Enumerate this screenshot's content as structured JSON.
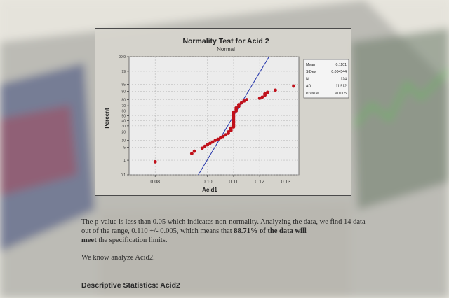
{
  "colors": {
    "background": "#e9e7df",
    "panel": "#d7d5cd",
    "points": "#c0101a",
    "fit_line": "#2233aa",
    "text": "#2a2a2a"
  },
  "chart_data": {
    "type": "scatter",
    "title": "Normality Test for Acid 2",
    "subtitle": "Normal",
    "xlabel": "Acid1",
    "ylabel": "Percent",
    "x_ticks": [
      "0.08",
      "0.10",
      "0.11",
      "0.12",
      "0.13"
    ],
    "y_ticks": [
      "0.1",
      "1",
      "5",
      "10",
      "20",
      "30",
      "40",
      "50",
      "60",
      "70",
      "80",
      "90",
      "95",
      "99",
      "99.9"
    ],
    "xlim": [
      0.07,
      0.135
    ],
    "ylim": [
      0.1,
      99.9
    ],
    "y_scale": "normal-probability",
    "grid": true,
    "fit_line": {
      "x1": 0.0965,
      "y1": 0.1,
      "x2": 0.1236,
      "y2": 99.9
    },
    "series": [
      {
        "points": [
          [
            0.08,
            0.8
          ],
          [
            0.094,
            2.4
          ],
          [
            0.095,
            3.2
          ],
          [
            0.098,
            4.5
          ],
          [
            0.099,
            5.5
          ],
          [
            0.1,
            6.5
          ],
          [
            0.101,
            7.5
          ],
          [
            0.102,
            8.5
          ],
          [
            0.103,
            10
          ],
          [
            0.104,
            11
          ],
          [
            0.105,
            12.5
          ],
          [
            0.106,
            14
          ],
          [
            0.107,
            16
          ],
          [
            0.108,
            18
          ],
          [
            0.108,
            20
          ],
          [
            0.109,
            22
          ],
          [
            0.109,
            24
          ],
          [
            0.109,
            26
          ],
          [
            0.11,
            28
          ],
          [
            0.11,
            30
          ],
          [
            0.11,
            33
          ],
          [
            0.11,
            36
          ],
          [
            0.11,
            39
          ],
          [
            0.11,
            42
          ],
          [
            0.11,
            45
          ],
          [
            0.11,
            48
          ],
          [
            0.11,
            51
          ],
          [
            0.11,
            54
          ],
          [
            0.11,
            57
          ],
          [
            0.111,
            60
          ],
          [
            0.111,
            63
          ],
          [
            0.111,
            66
          ],
          [
            0.112,
            69
          ],
          [
            0.112,
            72
          ],
          [
            0.113,
            75
          ],
          [
            0.114,
            78
          ],
          [
            0.115,
            80
          ],
          [
            0.12,
            82
          ],
          [
            0.121,
            83.5
          ],
          [
            0.122,
            86
          ],
          [
            0.122,
            87.5
          ],
          [
            0.123,
            89
          ],
          [
            0.126,
            91
          ],
          [
            0.133,
            94
          ]
        ]
      }
    ],
    "legend": {
      "placement": "right",
      "rows": [
        {
          "label": "Mean",
          "value": "0.1101"
        },
        {
          "label": "StDev",
          "value": "0.004544"
        },
        {
          "label": "N",
          "value": "124"
        },
        {
          "label": "AD",
          "value": "11.512"
        },
        {
          "label": "P-Value",
          "value": "<0.005"
        }
      ]
    }
  },
  "document": {
    "para1_part1": "The p-value is less than 0.05 which indicates non-normality.  Analyzing the data, we find 14 data out of the range, 0.110 +/- 0.005, which means that ",
    "para1_bold": "88.71% of the data will",
    "para1_bold2": "meet",
    "para1_part2": " the specification limits.",
    "para2": "We know analyze Acid2.",
    "heading": "Descriptive Statistics: Acid2"
  }
}
